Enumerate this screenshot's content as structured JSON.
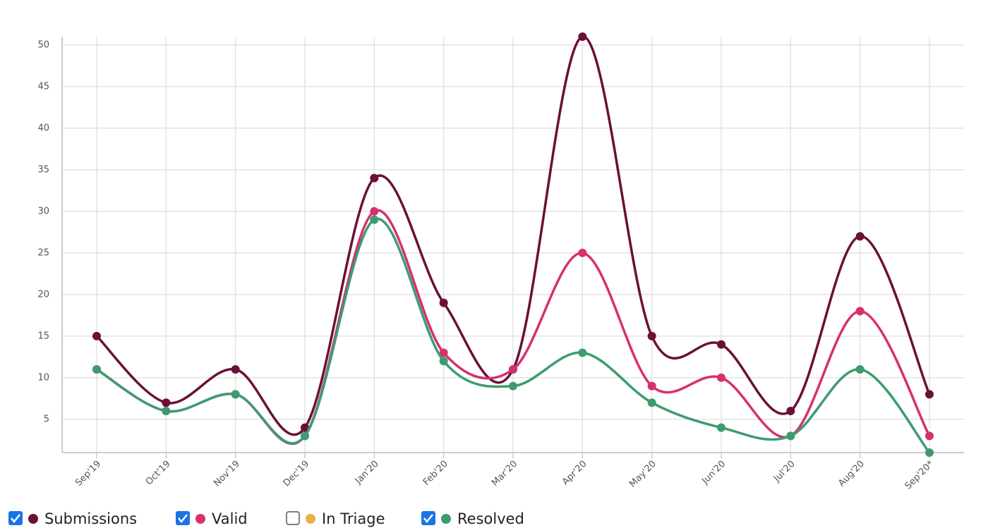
{
  "chart_data": {
    "type": "line",
    "categories": [
      "Sep'19",
      "Oct'19",
      "Nov'19",
      "Dec'19",
      "Jan'20",
      "Feb'20",
      "Mar'20",
      "Apr'20",
      "May'20",
      "Jun'20",
      "Jul'20",
      "Aug'20",
      "Sep'20*"
    ],
    "series": [
      {
        "name": "Submissions",
        "color": "#6b1038",
        "visible": true,
        "values": [
          15,
          7,
          11,
          4,
          34,
          19,
          11,
          51,
          15,
          14,
          6,
          27,
          8
        ]
      },
      {
        "name": "Valid",
        "color": "#d6306f",
        "visible": true,
        "values": [
          11,
          6,
          8,
          3,
          30,
          13,
          11,
          25,
          9,
          10,
          3,
          18,
          3
        ]
      },
      {
        "name": "In Triage",
        "color": "#e8b04a",
        "visible": false,
        "values": [
          null,
          null,
          null,
          null,
          null,
          null,
          null,
          null,
          null,
          null,
          null,
          null,
          null
        ]
      },
      {
        "name": "Resolved",
        "color": "#3d9c6e",
        "visible": true,
        "values": [
          11,
          6,
          8,
          3,
          29,
          12,
          9,
          13,
          7,
          4,
          3,
          11,
          1
        ]
      }
    ],
    "ylim": [
      1,
      51
    ],
    "yticks": [
      5,
      10,
      15,
      20,
      25,
      30,
      35,
      40,
      45,
      50
    ],
    "grid": true,
    "legend": "bottom-left"
  }
}
